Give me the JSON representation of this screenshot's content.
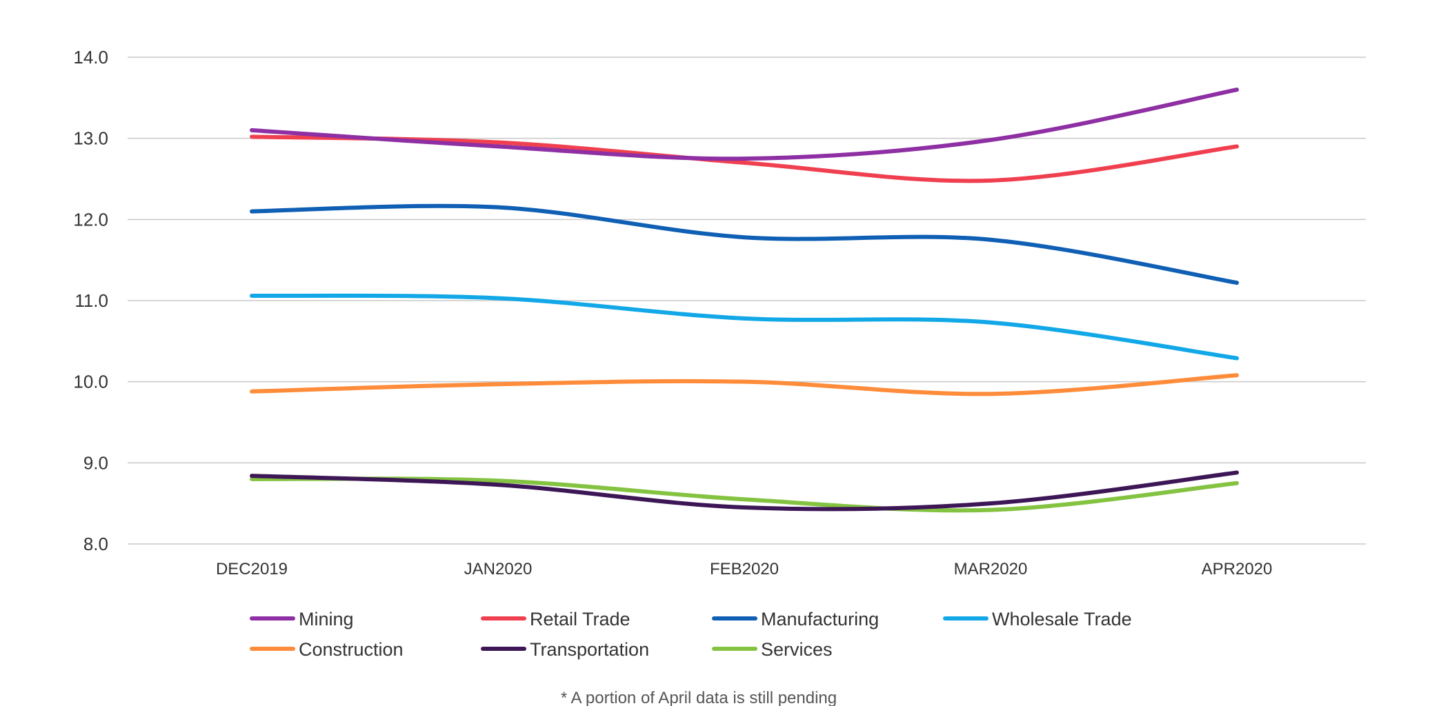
{
  "chart_data": {
    "type": "line",
    "categories": [
      "DEC2019",
      "JAN2020",
      "FEB2020",
      "MAR2020",
      "APR2020"
    ],
    "ylim": [
      8.0,
      14.0
    ],
    "yticks": [
      "8.0",
      "9.0",
      "10.0",
      "11.0",
      "12.0",
      "13.0",
      "14.0"
    ],
    "grid": true,
    "legend_position": "bottom",
    "smooth": true,
    "series": [
      {
        "name": "Mining",
        "color": "#8e2fa3",
        "values": [
          13.1,
          12.9,
          12.75,
          12.98,
          13.6
        ]
      },
      {
        "name": "Retail Trade",
        "color": "#f04050",
        "values": [
          13.02,
          12.95,
          12.7,
          12.48,
          12.9
        ]
      },
      {
        "name": "Manufacturing",
        "color": "#0f5fb4",
        "values": [
          12.1,
          12.15,
          11.78,
          11.75,
          11.22
        ]
      },
      {
        "name": "Wholesale Trade",
        "color": "#12a8e8",
        "values": [
          11.06,
          11.03,
          10.78,
          10.73,
          10.29
        ]
      },
      {
        "name": "Construction",
        "color": "#ff8c3a",
        "values": [
          9.88,
          9.97,
          10.0,
          9.85,
          10.08
        ]
      },
      {
        "name": "Transportation",
        "color": "#3d1656",
        "values": [
          8.84,
          8.73,
          8.45,
          8.5,
          8.88
        ]
      },
      {
        "name": "Services",
        "color": "#84c341",
        "values": [
          8.8,
          8.78,
          8.55,
          8.42,
          8.75
        ]
      }
    ],
    "footnote": "* A portion of April data is still pending"
  }
}
